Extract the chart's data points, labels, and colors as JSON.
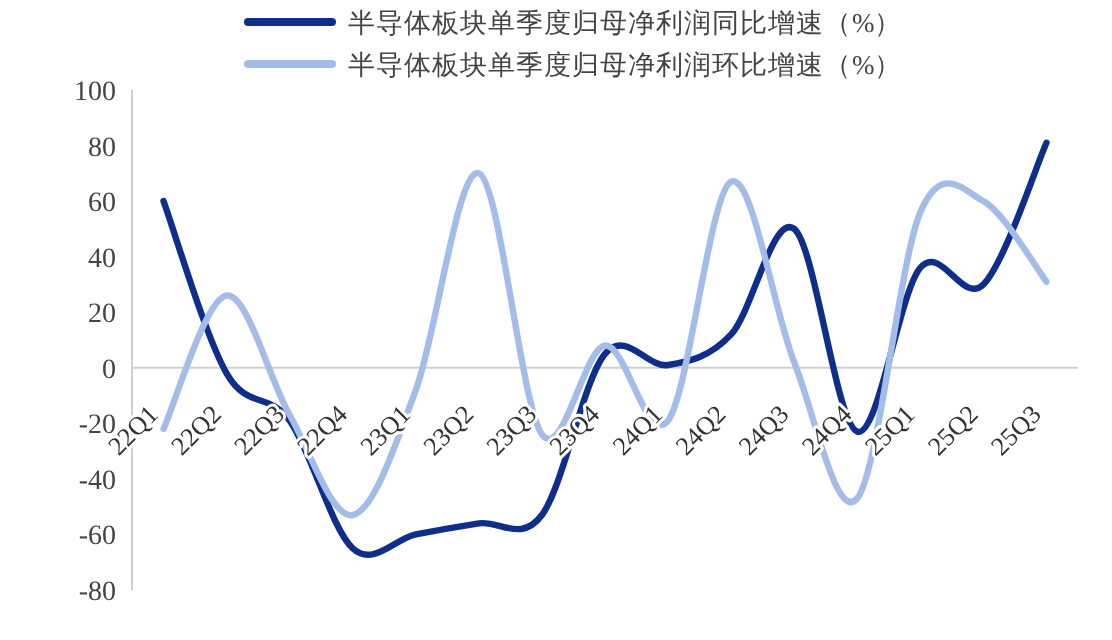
{
  "chart_data": {
    "type": "line",
    "categories": [
      "22Q1",
      "22Q2",
      "22Q3",
      "22Q4",
      "23Q1",
      "23Q2",
      "23Q3",
      "23Q4",
      "24Q1",
      "24Q2",
      "24Q3",
      "24Q4",
      "25Q1",
      "25Q2",
      "25Q3"
    ],
    "series": [
      {
        "name": "半导体板块单季度归母净利润同比增速（%）",
        "color": "#0f2e8c",
        "values": [
          60,
          -2,
          -19,
          -65,
          -60,
          -56,
          -53,
          5,
          1,
          12,
          50,
          -23,
          36,
          30,
          81
        ]
      },
      {
        "name": "半导体板块单季度归母净利润环比增速（%）",
        "color": "#a4bde8",
        "values": [
          -22,
          26,
          -17,
          -53,
          -8,
          70,
          -24,
          8,
          -19,
          67,
          2,
          -47,
          56,
          60,
          31
        ]
      }
    ],
    "ylim": [
      -80,
      100
    ],
    "yticks": [
      -80,
      -60,
      -40,
      -20,
      0,
      20,
      40,
      60,
      80,
      100
    ],
    "legend": "top",
    "grid": false,
    "marker": "none",
    "line_style": "solid"
  }
}
